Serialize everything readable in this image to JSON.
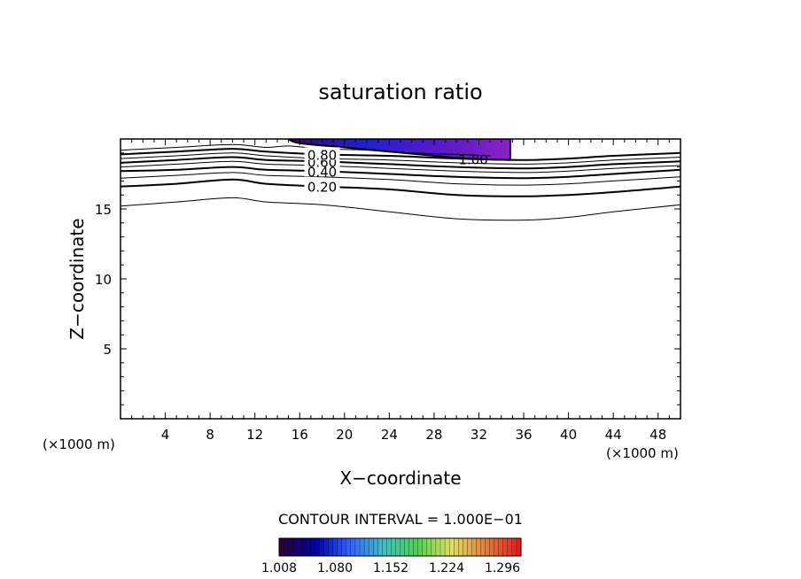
{
  "chart_data": {
    "type": "contour",
    "title": "saturation ratio",
    "xlabel": "X−coordinate",
    "ylabel": "Z−coordinate",
    "x_unit_left": "(×1000 m)",
    "x_unit_right": "(×1000 m)",
    "xlim": [
      0,
      50
    ],
    "ylim": [
      0,
      20
    ],
    "xticks": [
      4,
      8,
      12,
      16,
      20,
      24,
      28,
      32,
      36,
      40,
      44,
      48
    ],
    "yticks": [
      5,
      10,
      15
    ],
    "contour_levels": [
      0.1,
      0.2,
      0.3,
      0.4,
      0.5,
      0.6,
      0.7,
      0.8,
      0.9,
      1.0
    ],
    "contours": [
      {
        "level": 0.1,
        "label": "",
        "heavy": false,
        "points": [
          [
            0,
            15.2
          ],
          [
            5,
            15.5
          ],
          [
            10,
            15.8
          ],
          [
            13,
            15.5
          ],
          [
            18,
            15.3
          ],
          [
            24,
            14.8
          ],
          [
            30,
            14.3
          ],
          [
            36,
            14.2
          ],
          [
            40,
            14.4
          ],
          [
            44,
            14.8
          ],
          [
            50,
            15.3
          ]
        ]
      },
      {
        "level": 0.2,
        "label": "0.20",
        "heavy": true,
        "points": [
          [
            0,
            16.6
          ],
          [
            5,
            16.8
          ],
          [
            10,
            17.1
          ],
          [
            13,
            16.8
          ],
          [
            18,
            16.6
          ],
          [
            24,
            16.4
          ],
          [
            30,
            16.0
          ],
          [
            36,
            15.9
          ],
          [
            40,
            16.0
          ],
          [
            44,
            16.2
          ],
          [
            50,
            16.6
          ]
        ]
      },
      {
        "level": 0.3,
        "label": "",
        "heavy": false,
        "points": [
          [
            0,
            17.2
          ],
          [
            5,
            17.4
          ],
          [
            10,
            17.6
          ],
          [
            13,
            17.4
          ],
          [
            18,
            17.3
          ],
          [
            24,
            17.1
          ],
          [
            30,
            16.8
          ],
          [
            36,
            16.7
          ],
          [
            40,
            16.8
          ],
          [
            44,
            17.0
          ],
          [
            50,
            17.3
          ]
        ]
      },
      {
        "level": 0.4,
        "label": "0.40",
        "heavy": true,
        "points": [
          [
            0,
            17.7
          ],
          [
            5,
            17.8
          ],
          [
            10,
            18.0
          ],
          [
            13,
            17.8
          ],
          [
            18,
            17.7
          ],
          [
            24,
            17.5
          ],
          [
            30,
            17.3
          ],
          [
            36,
            17.2
          ],
          [
            40,
            17.3
          ],
          [
            44,
            17.5
          ],
          [
            50,
            17.8
          ]
        ]
      },
      {
        "level": 0.5,
        "label": "",
        "heavy": false,
        "points": [
          [
            0,
            18.0
          ],
          [
            5,
            18.2
          ],
          [
            10,
            18.4
          ],
          [
            13,
            18.2
          ],
          [
            18,
            18.1
          ],
          [
            24,
            17.9
          ],
          [
            30,
            17.7
          ],
          [
            36,
            17.6
          ],
          [
            40,
            17.7
          ],
          [
            44,
            17.9
          ],
          [
            50,
            18.1
          ]
        ]
      },
      {
        "level": 0.6,
        "label": "0.60",
        "heavy": true,
        "points": [
          [
            0,
            18.3
          ],
          [
            5,
            18.5
          ],
          [
            10,
            18.7
          ],
          [
            13,
            18.5
          ],
          [
            18,
            18.4
          ],
          [
            24,
            18.2
          ],
          [
            30,
            18.0
          ],
          [
            36,
            17.9
          ],
          [
            40,
            18.0
          ],
          [
            44,
            18.2
          ],
          [
            50,
            18.4
          ]
        ]
      },
      {
        "level": 0.7,
        "label": "",
        "heavy": false,
        "points": [
          [
            0,
            18.6
          ],
          [
            5,
            18.8
          ],
          [
            10,
            19.0
          ],
          [
            13,
            18.8
          ],
          [
            18,
            18.6
          ],
          [
            24,
            18.5
          ],
          [
            30,
            18.3
          ],
          [
            36,
            18.2
          ],
          [
            40,
            18.3
          ],
          [
            44,
            18.5
          ],
          [
            50,
            18.7
          ]
        ]
      },
      {
        "level": 0.8,
        "label": "0.80",
        "heavy": true,
        "points": [
          [
            0,
            18.9
          ],
          [
            5,
            19.1
          ],
          [
            10,
            19.3
          ],
          [
            13,
            19.1
          ],
          [
            18,
            18.9
          ],
          [
            24,
            18.8
          ],
          [
            30,
            18.6
          ],
          [
            36,
            18.5
          ],
          [
            40,
            18.6
          ],
          [
            44,
            18.8
          ],
          [
            50,
            19.0
          ]
        ]
      },
      {
        "level": 0.9,
        "label": "",
        "heavy": false,
        "points": [
          [
            0,
            19.2
          ],
          [
            5,
            19.4
          ],
          [
            10,
            19.6
          ],
          [
            13,
            19.4
          ],
          [
            15,
            19.5
          ],
          [
            18,
            19.3
          ],
          [
            22,
            19.2
          ],
          [
            26,
            19.0
          ],
          [
            30,
            18.9
          ],
          [
            33,
            18.8
          ]
        ]
      },
      {
        "level": 1.0,
        "label": "1.00",
        "heavy": true,
        "points": [
          [
            15,
            20
          ],
          [
            16,
            19.7
          ],
          [
            20,
            19.4
          ],
          [
            24,
            19.1
          ],
          [
            28,
            18.8
          ],
          [
            31,
            18.6
          ],
          [
            34.8,
            18.5
          ],
          [
            34.8,
            20
          ]
        ]
      }
    ],
    "shaded_region": {
      "description_level": "saturation ratio > 1.00",
      "points": [
        [
          15,
          20
        ],
        [
          16,
          19.7
        ],
        [
          20,
          19.4
        ],
        [
          24,
          19.1
        ],
        [
          28,
          18.8
        ],
        [
          31,
          18.6
        ],
        [
          34.8,
          18.5
        ],
        [
          34.8,
          20
        ]
      ]
    },
    "contour_interval_text": "CONTOUR INTERVAL = 1.000E−01",
    "colorbar": {
      "min": 1.008,
      "max": 1.32,
      "tick_labels": [
        "1.008",
        "1.080",
        "1.152",
        "1.224",
        "1.296"
      ],
      "colors": [
        "#2a0038",
        "#0000a0",
        "#3060ff",
        "#40c0c0",
        "#50d050",
        "#e0e060",
        "#e08040",
        "#e02020"
      ]
    }
  }
}
